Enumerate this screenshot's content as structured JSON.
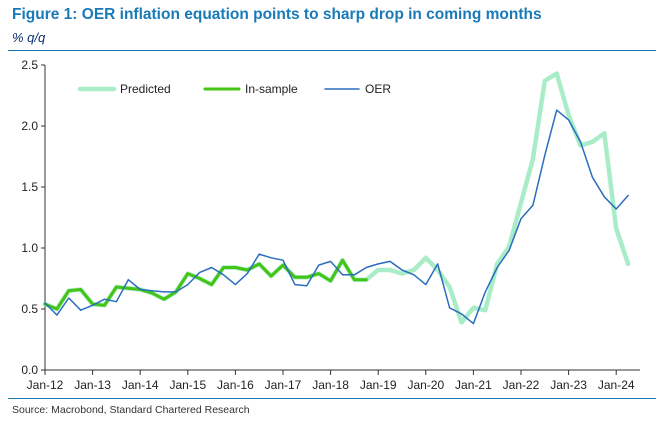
{
  "title": "Figure 1: OER inflation equation points to sharp drop in coming months",
  "subtitle": "% q/q",
  "source": "Source: Macrobond, Standard Chartered Research",
  "colors": {
    "title": "#1a7ab8",
    "predicted": "#a8ecc8",
    "in_sample": "#44c414",
    "oer": "#2a6ebd",
    "axis": "#333333"
  },
  "chart_data": {
    "type": "line",
    "ylim": [
      0.0,
      2.5
    ],
    "xlim": [
      2012.0,
      2024.5
    ],
    "grid": false,
    "legend_position": "top-left",
    "y_ticks": [
      {
        "value": 0.0,
        "label": "0.0"
      },
      {
        "value": 0.5,
        "label": "0.5"
      },
      {
        "value": 1.0,
        "label": "1.0"
      },
      {
        "value": 1.5,
        "label": "1.5"
      },
      {
        "value": 2.0,
        "label": "2.0"
      },
      {
        "value": 2.5,
        "label": "2.5"
      }
    ],
    "x_ticks": [
      {
        "value": 2012,
        "label": "Jan-12"
      },
      {
        "value": 2013,
        "label": "Jan-13"
      },
      {
        "value": 2014,
        "label": "Jan-14"
      },
      {
        "value": 2015,
        "label": "Jan-15"
      },
      {
        "value": 2016,
        "label": "Jan-16"
      },
      {
        "value": 2017,
        "label": "Jan-17"
      },
      {
        "value": 2018,
        "label": "Jan-18"
      },
      {
        "value": 2019,
        "label": "Jan-19"
      },
      {
        "value": 2020,
        "label": "Jan-20"
      },
      {
        "value": 2021,
        "label": "Jan-21"
      },
      {
        "value": 2022,
        "label": "Jan-22"
      },
      {
        "value": 2023,
        "label": "Jan-23"
      },
      {
        "value": 2024,
        "label": "Jan-24"
      }
    ],
    "series": [
      {
        "name": "Predicted",
        "color": "#a8ecc8",
        "points": [
          [
            2012.0,
            0.54
          ],
          [
            2012.25,
            0.5
          ],
          [
            2012.5,
            0.65
          ],
          [
            2012.75,
            0.66
          ],
          [
            2013.0,
            0.54
          ],
          [
            2013.25,
            0.53
          ],
          [
            2013.5,
            0.68
          ],
          [
            2013.75,
            0.67
          ],
          [
            2014.0,
            0.66
          ],
          [
            2014.25,
            0.63
          ],
          [
            2014.5,
            0.58
          ],
          [
            2014.75,
            0.64
          ],
          [
            2015.0,
            0.79
          ],
          [
            2015.25,
            0.75
          ],
          [
            2015.5,
            0.7
          ],
          [
            2015.75,
            0.84
          ],
          [
            2016.0,
            0.84
          ],
          [
            2016.25,
            0.82
          ],
          [
            2016.5,
            0.87
          ],
          [
            2016.75,
            0.77
          ],
          [
            2017.0,
            0.86
          ],
          [
            2017.25,
            0.76
          ],
          [
            2017.5,
            0.76
          ],
          [
            2017.75,
            0.79
          ],
          [
            2018.0,
            0.73
          ],
          [
            2018.25,
            0.9
          ],
          [
            2018.5,
            0.74
          ],
          [
            2018.75,
            0.74
          ],
          [
            2019.0,
            0.82
          ],
          [
            2019.25,
            0.82
          ],
          [
            2019.5,
            0.79
          ],
          [
            2019.75,
            0.82
          ],
          [
            2020.0,
            0.92
          ],
          [
            2020.25,
            0.82
          ],
          [
            2020.5,
            0.68
          ],
          [
            2020.75,
            0.39
          ],
          [
            2021.0,
            0.51
          ],
          [
            2021.25,
            0.49
          ],
          [
            2021.5,
            0.87
          ],
          [
            2021.75,
            1.01
          ],
          [
            2022.0,
            1.37
          ],
          [
            2022.25,
            1.73
          ],
          [
            2022.5,
            2.37
          ],
          [
            2022.75,
            2.43
          ],
          [
            2023.0,
            2.09
          ],
          [
            2023.25,
            1.84
          ],
          [
            2023.5,
            1.87
          ],
          [
            2023.75,
            1.94
          ],
          [
            2024.0,
            1.16
          ],
          [
            2024.25,
            0.87
          ]
        ]
      },
      {
        "name": "In-sample",
        "color": "#44c414",
        "points": [
          [
            2012.0,
            0.54
          ],
          [
            2012.25,
            0.5
          ],
          [
            2012.5,
            0.65
          ],
          [
            2012.75,
            0.66
          ],
          [
            2013.0,
            0.54
          ],
          [
            2013.25,
            0.53
          ],
          [
            2013.5,
            0.68
          ],
          [
            2013.75,
            0.67
          ],
          [
            2014.0,
            0.66
          ],
          [
            2014.25,
            0.63
          ],
          [
            2014.5,
            0.58
          ],
          [
            2014.75,
            0.64
          ],
          [
            2015.0,
            0.79
          ],
          [
            2015.25,
            0.75
          ],
          [
            2015.5,
            0.7
          ],
          [
            2015.75,
            0.84
          ],
          [
            2016.0,
            0.84
          ],
          [
            2016.25,
            0.82
          ],
          [
            2016.5,
            0.87
          ],
          [
            2016.75,
            0.77
          ],
          [
            2017.0,
            0.86
          ],
          [
            2017.25,
            0.76
          ],
          [
            2017.5,
            0.76
          ],
          [
            2017.75,
            0.79
          ],
          [
            2018.0,
            0.73
          ],
          [
            2018.25,
            0.9
          ],
          [
            2018.5,
            0.74
          ],
          [
            2018.75,
            0.74
          ]
        ]
      },
      {
        "name": "OER",
        "color": "#2a6ebd",
        "points": [
          [
            2012.0,
            0.55
          ],
          [
            2012.25,
            0.45
          ],
          [
            2012.5,
            0.59
          ],
          [
            2012.75,
            0.49
          ],
          [
            2013.0,
            0.53
          ],
          [
            2013.25,
            0.58
          ],
          [
            2013.5,
            0.56
          ],
          [
            2013.75,
            0.74
          ],
          [
            2014.0,
            0.66
          ],
          [
            2014.25,
            0.65
          ],
          [
            2014.5,
            0.64
          ],
          [
            2014.75,
            0.64
          ],
          [
            2015.0,
            0.7
          ],
          [
            2015.25,
            0.8
          ],
          [
            2015.5,
            0.84
          ],
          [
            2015.75,
            0.78
          ],
          [
            2016.0,
            0.7
          ],
          [
            2016.25,
            0.79
          ],
          [
            2016.5,
            0.95
          ],
          [
            2016.75,
            0.92
          ],
          [
            2017.0,
            0.9
          ],
          [
            2017.25,
            0.7
          ],
          [
            2017.5,
            0.69
          ],
          [
            2017.75,
            0.86
          ],
          [
            2018.0,
            0.89
          ],
          [
            2018.25,
            0.78
          ],
          [
            2018.5,
            0.78
          ],
          [
            2018.75,
            0.84
          ],
          [
            2019.0,
            0.87
          ],
          [
            2019.25,
            0.89
          ],
          [
            2019.5,
            0.82
          ],
          [
            2019.75,
            0.78
          ],
          [
            2020.0,
            0.7
          ],
          [
            2020.25,
            0.87
          ],
          [
            2020.5,
            0.51
          ],
          [
            2020.75,
            0.46
          ],
          [
            2021.0,
            0.38
          ],
          [
            2021.25,
            0.64
          ],
          [
            2021.5,
            0.84
          ],
          [
            2021.75,
            0.98
          ],
          [
            2022.0,
            1.24
          ],
          [
            2022.25,
            1.35
          ],
          [
            2022.5,
            1.76
          ],
          [
            2022.75,
            2.13
          ],
          [
            2023.0,
            2.05
          ],
          [
            2023.25,
            1.87
          ],
          [
            2023.5,
            1.58
          ],
          [
            2023.75,
            1.42
          ],
          [
            2024.0,
            1.32
          ],
          [
            2024.25,
            1.43
          ]
        ]
      }
    ]
  }
}
